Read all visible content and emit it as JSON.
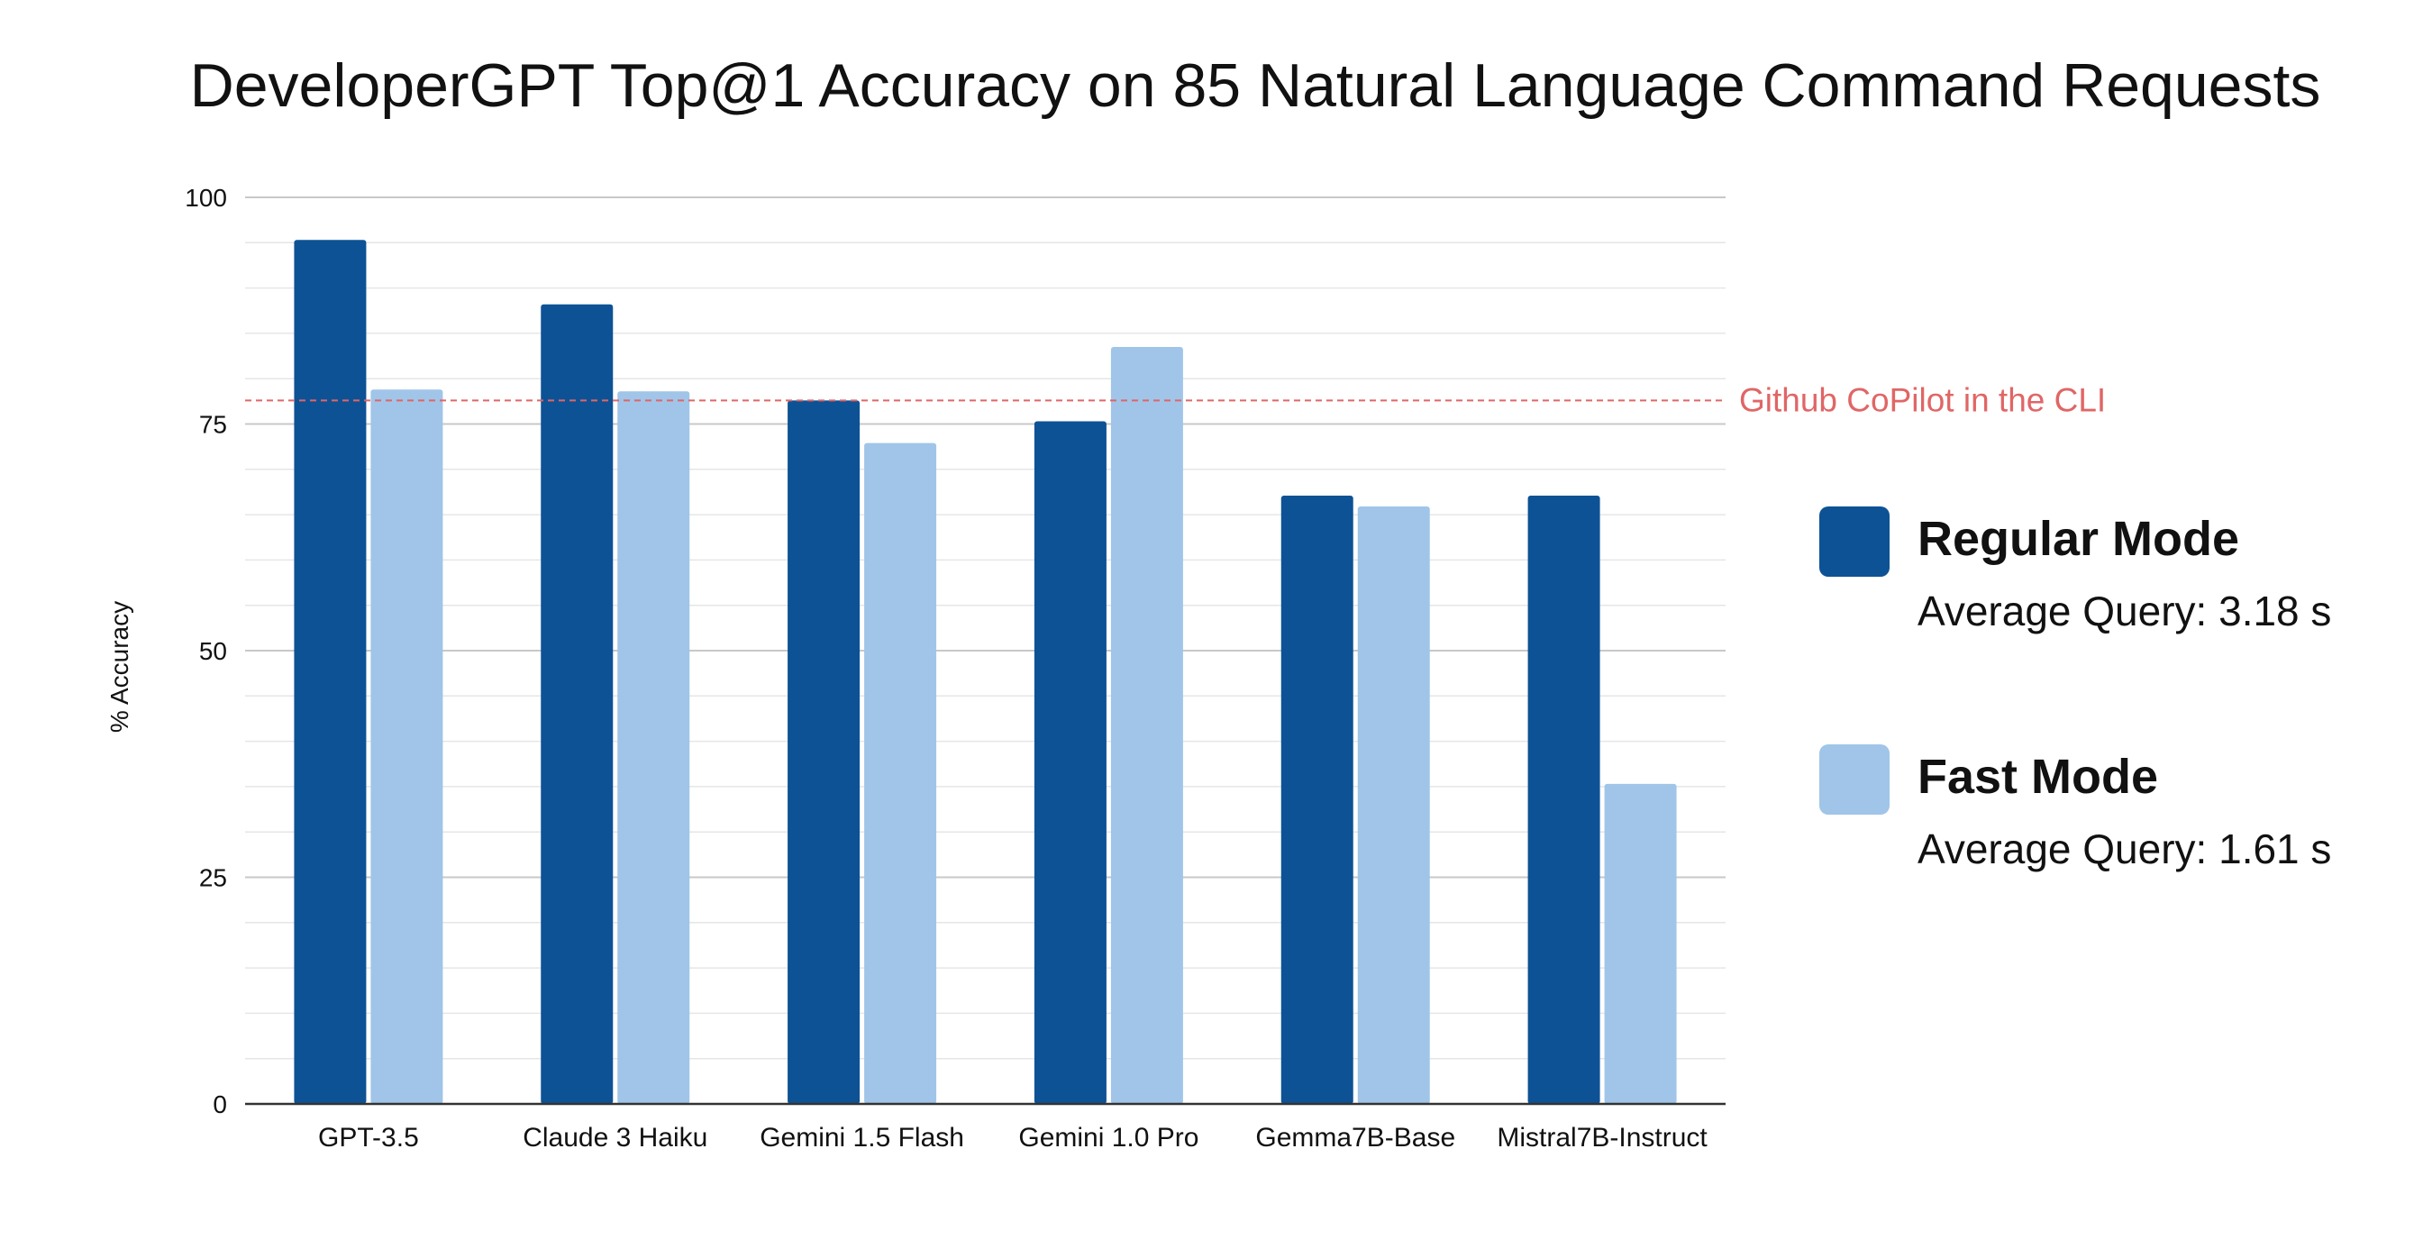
{
  "chart_data": {
    "type": "bar",
    "title": "DeveloperGPT Top@1 Accuracy on 85 Natural Language Command Requests",
    "xlabel": "",
    "ylabel": "% Accuracy",
    "ylim": [
      0,
      100
    ],
    "yticks": [
      0,
      25,
      50,
      75,
      100
    ],
    "minor_grid_step": 5,
    "grid": true,
    "legend_position": "right",
    "categories": [
      "GPT-3.5",
      "Claude 3 Haiku",
      "Gemini 1.5 Flash",
      "Gemini 1.0 Pro",
      "Gemma7B-Base",
      "Mistral7B-Instruct"
    ],
    "series": [
      {
        "name": "Regular Mode",
        "subtitle": "Average Query: 3.18 s",
        "color": "#0d5295",
        "values": [
          95.3,
          88.2,
          77.6,
          75.3,
          67.1,
          67.1
        ]
      },
      {
        "name": "Fast Mode",
        "subtitle": "Average Query: 1.61 s",
        "color": "#a0c5e8",
        "values": [
          78.8,
          78.6,
          72.9,
          83.5,
          65.9,
          35.3
        ]
      }
    ],
    "reference_line": {
      "label": "Github CoPilot in the CLI",
      "value": 77.6,
      "color": "#e06666"
    }
  }
}
